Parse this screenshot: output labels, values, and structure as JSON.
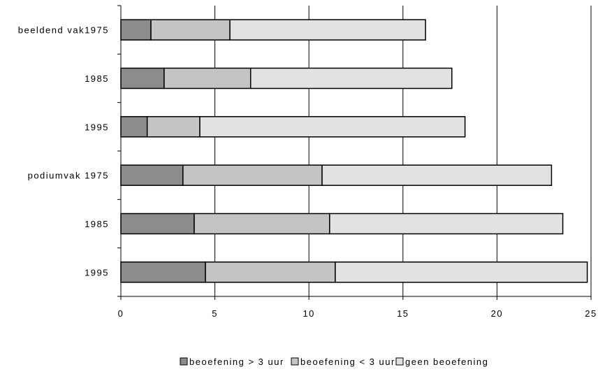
{
  "chart_data": {
    "type": "bar",
    "orientation": "horizontal",
    "stacked": true,
    "title": "",
    "xlabel": "",
    "ylabel": "",
    "xlim": [
      0,
      25
    ],
    "x_ticks": [
      "0",
      "5",
      "10",
      "15",
      "20",
      "25"
    ],
    "grid": "vertical major gridlines",
    "legend_position": "bottom",
    "categories": [
      "beeldend vak1975",
      "1985",
      "1995",
      "podiumvak  1975",
      "1985",
      "1995"
    ],
    "series": [
      {
        "name": "beoefening > 3 uur",
        "color": "#8c8c8c",
        "values": [
          1.6,
          2.3,
          1.4,
          3.3,
          3.9,
          4.5
        ]
      },
      {
        "name": "beoefening < 3 uur",
        "color": "#c4c4c4",
        "values": [
          4.2,
          4.6,
          2.8,
          7.4,
          7.2,
          6.9
        ]
      },
      {
        "name": "geen beoefening",
        "color": "#e2e2e2",
        "values": [
          10.4,
          10.7,
          14.1,
          12.2,
          12.4,
          13.4
        ]
      }
    ]
  }
}
